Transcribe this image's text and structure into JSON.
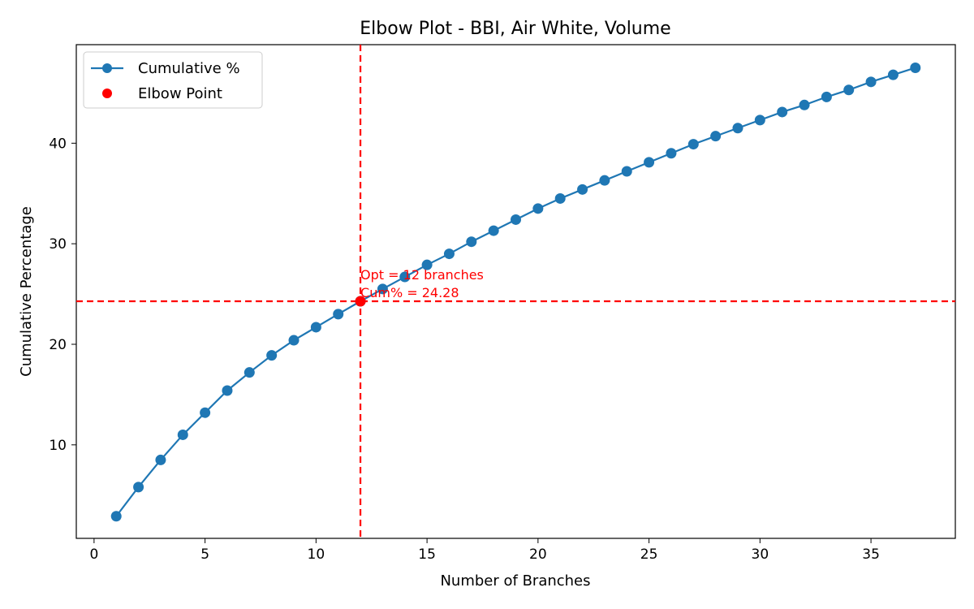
{
  "chart_data": {
    "type": "line",
    "title": "Elbow Plot - BBI, Air White, Volume",
    "xlabel": "Number of Branches",
    "ylabel": "Cumulative Percentage",
    "xlim": [
      -0.8,
      38.8
    ],
    "ylim": [
      0.7,
      49.8
    ],
    "xticks": [
      0,
      5,
      10,
      15,
      20,
      25,
      30,
      35
    ],
    "yticks": [
      10,
      20,
      30,
      40
    ],
    "grid": false,
    "legend_position": "top-left",
    "series": [
      {
        "name": "Cumulative %",
        "color": "#1f77b4",
        "marker": "circle",
        "x": [
          1,
          2,
          3,
          4,
          5,
          6,
          7,
          8,
          9,
          10,
          11,
          12,
          13,
          14,
          15,
          16,
          17,
          18,
          19,
          20,
          21,
          22,
          23,
          24,
          25,
          26,
          27,
          28,
          29,
          30,
          31,
          32,
          33,
          34,
          35,
          36,
          37
        ],
        "y": [
          2.9,
          5.8,
          8.5,
          11.0,
          13.2,
          15.4,
          17.2,
          18.9,
          20.4,
          21.7,
          23.0,
          24.28,
          25.5,
          26.7,
          27.9,
          29.0,
          30.2,
          31.3,
          32.4,
          33.5,
          34.5,
          35.4,
          36.3,
          37.2,
          38.1,
          39.0,
          39.9,
          40.7,
          41.5,
          42.3,
          43.1,
          43.8,
          44.6,
          45.3,
          46.1,
          46.8,
          47.5
        ]
      }
    ],
    "elbow": {
      "name": "Elbow Point",
      "x": 12,
      "y": 24.28,
      "color": "#ff0000",
      "annotation_line1": "Opt = 12 branches",
      "annotation_line2": "Cum% = 24.28"
    }
  }
}
